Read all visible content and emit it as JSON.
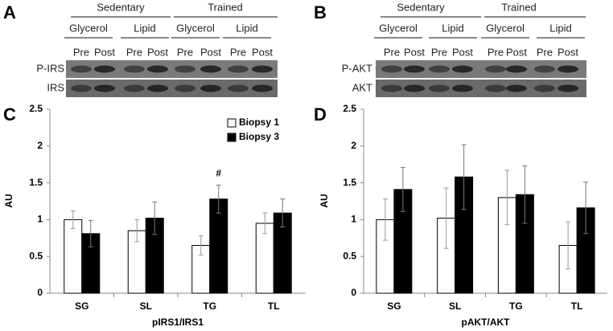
{
  "blots": [
    {
      "panel": "A",
      "groups": [
        "Sedentary",
        "Trained"
      ],
      "conditions": [
        "Glycerol",
        "Lipid",
        "Glycerol",
        "Lipid"
      ],
      "timepoints": [
        "Pre",
        "Post",
        "Pre",
        "Post",
        "Pre",
        "Post",
        "Pre",
        "Post"
      ],
      "rows": [
        "P-IRS",
        "IRS"
      ]
    },
    {
      "panel": "B",
      "groups": [
        "Sedentary",
        "Trained"
      ],
      "conditions": [
        "Glycerol",
        "Lipid",
        "Glycerol",
        "Lipid"
      ],
      "timepoints": [
        "Pre",
        "Post",
        "Pre",
        "Post",
        "Pre",
        "Post",
        "Pre",
        "Post"
      ],
      "rows": [
        "P-AKT",
        "AKT"
      ]
    }
  ],
  "chart_data": [
    {
      "type": "bar",
      "panel": "C",
      "xlabel": "pIRS1/IRS1",
      "ylabel": "AU",
      "categories": [
        "SG",
        "SL",
        "TG",
        "TL"
      ],
      "series": [
        {
          "name": "Biopsy 1",
          "color": "#ffffff",
          "values": [
            1.0,
            0.85,
            0.65,
            0.95
          ],
          "errors": [
            0.12,
            0.15,
            0.13,
            0.14
          ]
        },
        {
          "name": "Biopsy 3",
          "color": "#000000",
          "values": [
            0.81,
            1.02,
            1.28,
            1.09
          ],
          "errors": [
            0.18,
            0.22,
            0.19,
            0.19
          ]
        }
      ],
      "annotations": [
        {
          "text": "#",
          "category": 2,
          "series": 1
        }
      ],
      "ylim": [
        0,
        2.5
      ],
      "yticks": [
        0,
        0.5,
        1,
        1.5,
        2,
        2.5
      ],
      "grid": false,
      "legend": "top-right"
    },
    {
      "type": "bar",
      "panel": "D",
      "xlabel": "pAKT/AKT",
      "ylabel": "AU",
      "categories": [
        "SG",
        "SL",
        "TG",
        "TL"
      ],
      "series": [
        {
          "color": "#ffffff",
          "values": [
            1.0,
            1.02,
            1.3,
            0.65
          ],
          "errors": [
            0.28,
            0.41,
            0.37,
            0.32
          ]
        },
        {
          "color": "#000000",
          "values": [
            1.41,
            1.58,
            1.34,
            1.16
          ],
          "errors": [
            0.3,
            0.44,
            0.39,
            0.35
          ]
        }
      ],
      "ylim": [
        0,
        2.5
      ],
      "yticks": [
        0,
        0.5,
        1,
        1.5,
        2,
        2.5
      ],
      "grid": false,
      "legend": false
    }
  ]
}
